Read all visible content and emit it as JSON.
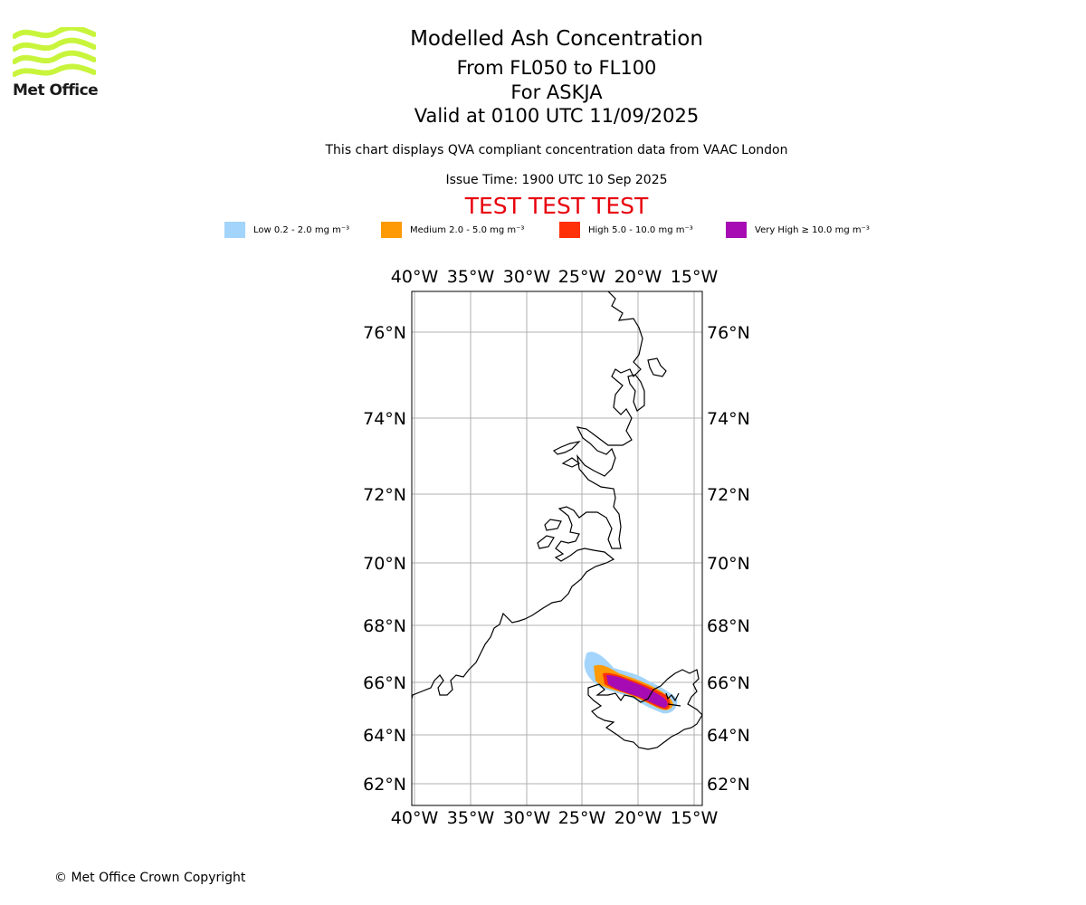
{
  "logo": {
    "text": "Met Office",
    "color": "#c8f53c"
  },
  "header": {
    "title": "Modelled Ash Concentration",
    "levels": "From FL050 to FL100",
    "volcano": "For ASKJA",
    "valid": "Valid at 0100 UTC 11/09/2025",
    "description": "This chart displays QVA compliant concentration data from VAAC London",
    "issue_time": "Issue Time: 1900 UTC 10 Sep 2025",
    "test_banner": "TEST TEST TEST"
  },
  "legend": [
    {
      "label": "Low 0.2 - 2.0 mg m⁻³",
      "color": "#a3d4fb"
    },
    {
      "label": "Medium 2.0 - 5.0 mg m⁻³",
      "color": "#fd9a05"
    },
    {
      "label": "High 5.0 - 10.0 mg m⁻³",
      "color": "#fe3108"
    },
    {
      "label": "Very High ≥ 10.0 mg m⁻³",
      "color": "#a70bb3"
    }
  ],
  "map": {
    "lon_labels": [
      "40°W",
      "35°W",
      "30°W",
      "25°W",
      "20°W",
      "15°W"
    ],
    "lat_labels": [
      "76°N",
      "74°N",
      "72°N",
      "70°N",
      "68°N",
      "66°N",
      "64°N",
      "62°N"
    ],
    "volcano_marker": "Askja"
  },
  "footer": {
    "copyright": "© Met Office Crown Copyright"
  }
}
